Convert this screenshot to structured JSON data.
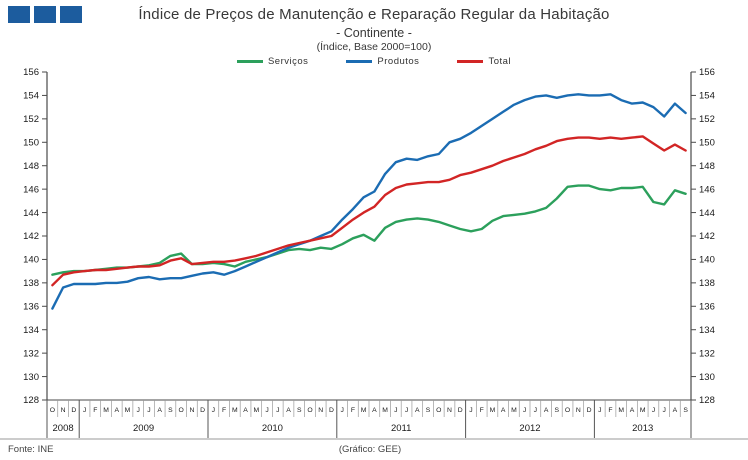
{
  "header": {
    "title": "Índice de Preços de Manutenção e Reparação Regular da Habitação",
    "subtitle": "- Continente -",
    "note": "(Índice,  Base 2000=100)"
  },
  "footer": {
    "source": "Fonte: INE",
    "credit": "(Gráfico:  GEE)"
  },
  "colors": {
    "logo_blue": "#1c5c9e",
    "servicos_green": "#2ca05c",
    "produtos_blue": "#1b6cb3",
    "total_red": "#d22525",
    "axis": "#4a4a4a"
  },
  "chart_data": {
    "type": "line",
    "title": "Índice de Preços de Manutenção e Reparação Regular da Habitação - Continente - (Índice, Base 2000=100)",
    "xlabel": "",
    "ylabel": "",
    "grid": false,
    "legend_position": "top",
    "y_axis": {
      "min": 128,
      "max": 156,
      "step": 2,
      "ticks": [
        128,
        130,
        132,
        134,
        136,
        138,
        140,
        142,
        144,
        146,
        148,
        150,
        152,
        154,
        156
      ]
    },
    "x_axis": {
      "years": [
        {
          "label": "2008",
          "months": [
            "O",
            "N",
            "D"
          ]
        },
        {
          "label": "2009",
          "months": [
            "J",
            "F",
            "M",
            "A",
            "M",
            "J",
            "J",
            "A",
            "S",
            "O",
            "N",
            "D"
          ]
        },
        {
          "label": "2010",
          "months": [
            "J",
            "F",
            "M",
            "A",
            "M",
            "J",
            "J",
            "A",
            "S",
            "O",
            "N",
            "D"
          ]
        },
        {
          "label": "2011",
          "months": [
            "J",
            "F",
            "M",
            "A",
            "M",
            "J",
            "J",
            "A",
            "S",
            "O",
            "N",
            "D"
          ]
        },
        {
          "label": "2012",
          "months": [
            "J",
            "F",
            "M",
            "A",
            "M",
            "J",
            "J",
            "A",
            "S",
            "O",
            "N",
            "D"
          ]
        },
        {
          "label": "2013",
          "months": [
            "J",
            "F",
            "M",
            "A",
            "M",
            "J",
            "J",
            "A",
            "S"
          ]
        }
      ]
    },
    "series": [
      {
        "name": "Serviços",
        "color": "#2ca05c",
        "values": [
          138.7,
          138.9,
          139.0,
          139.0,
          139.1,
          139.2,
          139.3,
          139.3,
          139.4,
          139.5,
          139.7,
          140.3,
          140.5,
          139.6,
          139.6,
          139.7,
          139.6,
          139.4,
          139.8,
          140.0,
          140.2,
          140.5,
          140.8,
          140.9,
          140.8,
          141.0,
          140.9,
          141.3,
          141.8,
          142.1,
          141.6,
          142.7,
          143.2,
          143.4,
          143.5,
          143.4,
          143.2,
          142.9,
          142.6,
          142.4,
          142.6,
          143.3,
          143.7,
          143.8,
          143.9,
          144.1,
          144.4,
          145.2,
          146.2,
          146.3,
          146.3,
          146.0,
          145.9,
          146.1,
          146.1,
          146.2,
          144.9,
          144.7,
          145.9,
          145.6
        ]
      },
      {
        "name": "Produtos",
        "color": "#1b6cb3",
        "values": [
          135.8,
          137.6,
          137.9,
          137.9,
          137.9,
          138.0,
          138.0,
          138.1,
          138.4,
          138.5,
          138.3,
          138.4,
          138.4,
          138.6,
          138.8,
          138.9,
          138.7,
          139.0,
          139.4,
          139.8,
          140.2,
          140.6,
          141.0,
          141.3,
          141.6,
          142.0,
          142.4,
          143.4,
          144.3,
          145.3,
          145.8,
          147.3,
          148.3,
          148.6,
          148.5,
          148.8,
          149.0,
          150.0,
          150.3,
          150.8,
          151.4,
          152.0,
          152.6,
          153.2,
          153.6,
          153.9,
          154.0,
          153.8,
          154.0,
          154.1,
          154.0,
          154.0,
          154.1,
          153.6,
          153.3,
          153.4,
          153.0,
          152.2,
          153.3,
          152.5
        ]
      },
      {
        "name": "Total",
        "color": "#d22525",
        "values": [
          137.8,
          138.7,
          138.9,
          139.0,
          139.1,
          139.1,
          139.2,
          139.3,
          139.4,
          139.4,
          139.5,
          139.9,
          140.1,
          139.6,
          139.7,
          139.8,
          139.8,
          139.9,
          140.1,
          140.3,
          140.6,
          140.9,
          141.2,
          141.4,
          141.6,
          141.8,
          142.0,
          142.7,
          143.4,
          144.0,
          144.5,
          145.5,
          146.1,
          146.4,
          146.5,
          146.6,
          146.6,
          146.8,
          147.2,
          147.4,
          147.7,
          148.0,
          148.4,
          148.7,
          149.0,
          149.4,
          149.7,
          150.1,
          150.3,
          150.4,
          150.4,
          150.3,
          150.4,
          150.3,
          150.4,
          150.5,
          149.9,
          149.3,
          149.8,
          149.3
        ]
      }
    ]
  }
}
